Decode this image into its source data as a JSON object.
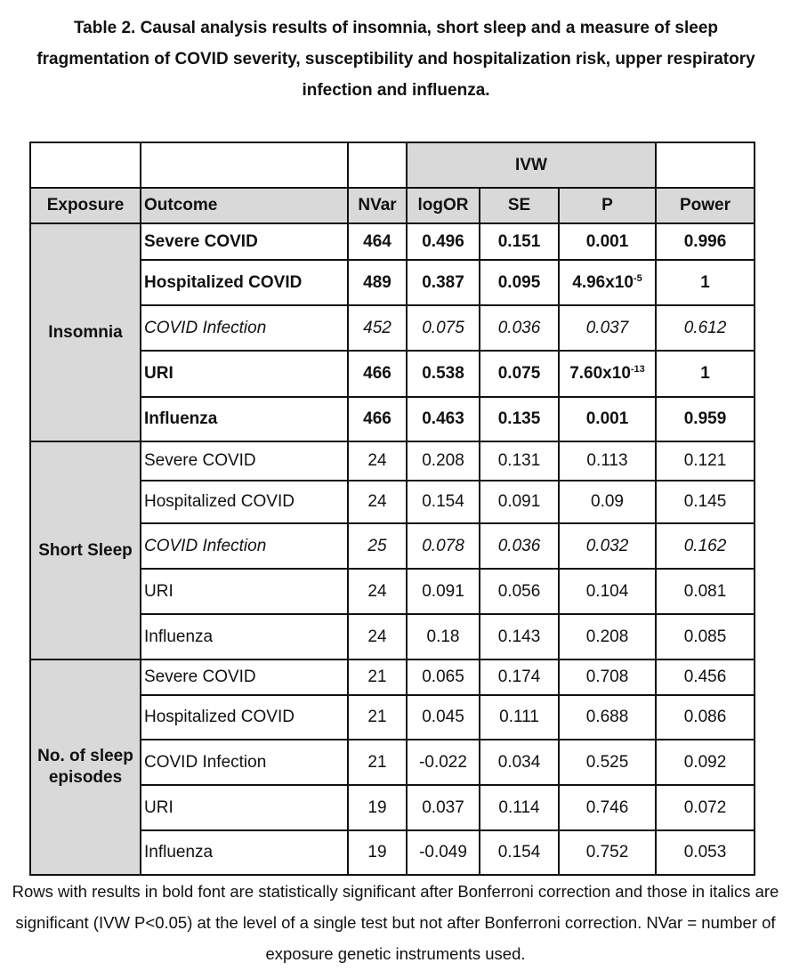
{
  "title": "Table 2. Causal analysis results of insomnia, short sleep and a measure of sleep fragmentation of COVID severity, susceptibility and hospitalization risk, upper respiratory infection and influenza.",
  "table": {
    "group_header": "IVW",
    "columns": [
      "Exposure",
      "Outcome",
      "NVar",
      "logOR",
      "SE",
      "P",
      "Power"
    ],
    "groups": [
      {
        "exposure": "Insomnia",
        "rows": [
          {
            "style": "bold",
            "outcome": "Severe COVID",
            "nvar": "464",
            "logor": "0.496",
            "se": "0.151",
            "p": "0.001",
            "power": "0.996"
          },
          {
            "style": "bold",
            "outcome": "Hospitalized COVID",
            "nvar": "489",
            "logor": "0.387",
            "se": "0.095",
            "p": "4.96x10",
            "p_exp": "-5",
            "power": "1"
          },
          {
            "style": "italic",
            "outcome": "COVID Infection",
            "nvar": "452",
            "logor": "0.075",
            "se": "0.036",
            "p": "0.037",
            "power": "0.612"
          },
          {
            "style": "bold",
            "outcome": "URI",
            "nvar": "466",
            "logor": "0.538",
            "se": "0.075",
            "p": "7.60x10",
            "p_exp": "-13",
            "power": "1"
          },
          {
            "style": "bold",
            "outcome": "Influenza",
            "nvar": "466",
            "logor": "0.463",
            "se": "0.135",
            "p": "0.001",
            "power": "0.959"
          }
        ]
      },
      {
        "exposure": "Short Sleep",
        "rows": [
          {
            "style": "normal",
            "outcome": "Severe COVID",
            "nvar": "24",
            "logor": "0.208",
            "se": "0.131",
            "p": "0.113",
            "power": "0.121"
          },
          {
            "style": "normal",
            "outcome": "Hospitalized COVID",
            "nvar": "24",
            "logor": "0.154",
            "se": "0.091",
            "p": "0.09",
            "power": "0.145"
          },
          {
            "style": "italic",
            "outcome": "COVID Infection",
            "nvar": "25",
            "logor": "0.078",
            "se": "0.036",
            "p": "0.032",
            "power": "0.162"
          },
          {
            "style": "normal",
            "outcome": "URI",
            "nvar": "24",
            "logor": "0.091",
            "se": "0.056",
            "p": "0.104",
            "power": "0.081"
          },
          {
            "style": "normal",
            "outcome": "Influenza",
            "nvar": "24",
            "logor": "0.18",
            "se": "0.143",
            "p": "0.208",
            "power": "0.085"
          }
        ]
      },
      {
        "exposure": "No. of sleep episodes",
        "rows": [
          {
            "style": "normal",
            "outcome": "Severe COVID",
            "nvar": "21",
            "logor": "0.065",
            "se": "0.174",
            "p": "0.708",
            "power": "0.456"
          },
          {
            "style": "normal",
            "outcome": "Hospitalized COVID",
            "nvar": "21",
            "logor": "0.045",
            "se": "0.111",
            "p": "0.688",
            "power": "0.086"
          },
          {
            "style": "normal",
            "outcome": "COVID Infection",
            "nvar": "21",
            "logor": "-0.022",
            "se": "0.034",
            "p": "0.525",
            "power": "0.092"
          },
          {
            "style": "normal",
            "outcome": "URI",
            "nvar": "19",
            "logor": "0.037",
            "se": "0.114",
            "p": "0.746",
            "power": "0.072"
          },
          {
            "style": "normal",
            "outcome": "Influenza",
            "nvar": "19",
            "logor": "-0.049",
            "se": "0.154",
            "p": "0.752",
            "power": "0.053"
          }
        ]
      }
    ]
  },
  "footnote": "Rows with results in bold font are statistically significant after Bonferroni correction and those in italics are significant (IVW P<0.05) at the level of a single test but not after Bonferroni correction. NVar = number of exposure genetic instruments used."
}
